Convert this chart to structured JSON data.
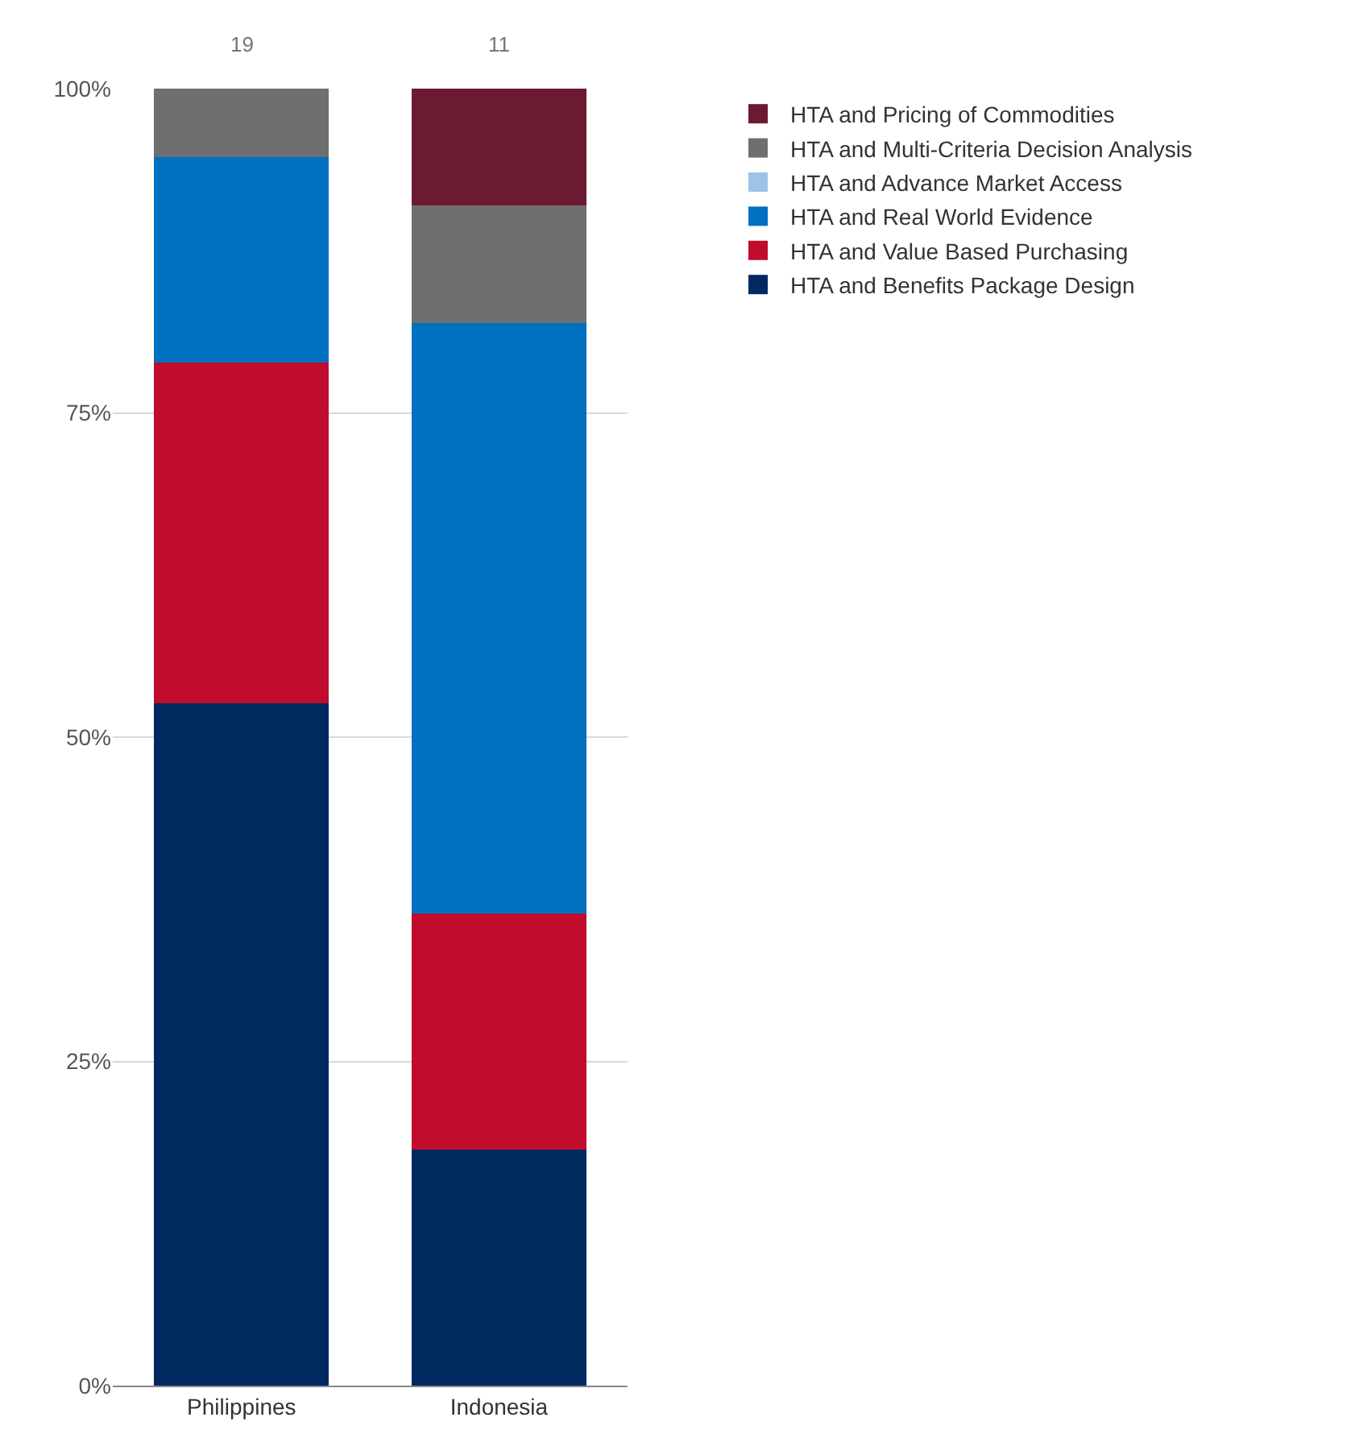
{
  "chart_data": {
    "type": "bar",
    "stacked": true,
    "categories": [
      "Philippines",
      "Indonesia"
    ],
    "series": [
      {
        "name": "HTA and Benefits Package Design",
        "color": "#002960",
        "values": [
          52.6,
          18.2
        ]
      },
      {
        "name": "HTA and Value Based Purchasing",
        "color": "#c00d2d",
        "values": [
          26.3,
          18.2
        ]
      },
      {
        "name": "HTA and Real World Evidence",
        "color": "#0070c0",
        "values": [
          15.8,
          45.5
        ]
      },
      {
        "name": "HTA and Advance Market Access",
        "color": "#9dc3e6",
        "values": [
          0,
          0
        ]
      },
      {
        "name": "HTA and Multi-Criteria Decision Analysis",
        "color": "#6f6f6f",
        "values": [
          5.3,
          9.1
        ]
      },
      {
        "name": "HTA and Pricing of Commodities",
        "color": "#6b1a32",
        "values": [
          0,
          9.1
        ]
      }
    ],
    "ylim": [
      0,
      100
    ],
    "yticks": [
      {
        "value": 0,
        "label": "0%"
      },
      {
        "value": 25,
        "label": "25%"
      },
      {
        "value": 50,
        "label": "50%"
      },
      {
        "value": 75,
        "label": "75%"
      },
      {
        "value": 100,
        "label": "100%"
      }
    ],
    "annotations": [
      "19",
      "11"
    ],
    "grid": "y",
    "legend": "top right"
  }
}
